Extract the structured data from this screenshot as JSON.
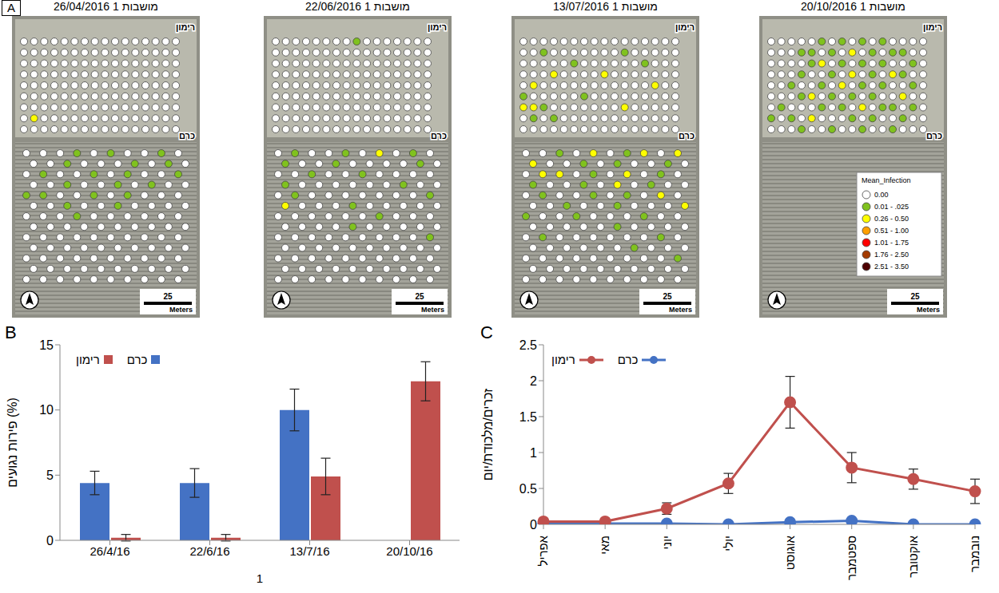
{
  "maps": {
    "panel_label": "A",
    "scale_bar": {
      "value": 25,
      "unit": "Meters"
    },
    "legend": {
      "title": "Mean_Infection",
      "classes": [
        {
          "label": "0.00",
          "color": "#ffffff"
        },
        {
          "label": "0.01 - .025",
          "color": "#80c21e"
        },
        {
          "label": "0.26 - 0.50",
          "color": "#ffff00"
        },
        {
          "label": "0.51 - 1.00",
          "color": "#ff9f00"
        },
        {
          "label": "1.01 - 1.75",
          "color": "#ff0000"
        },
        {
          "label": "1.76 - 2.50",
          "color": "#a33a00"
        },
        {
          "label": "2.51 - 3.50",
          "color": "#4d0000"
        }
      ]
    },
    "items": [
      {
        "title": "מושבות 1 26/04/2016",
        "blocks": [
          {
            "name": "רימון",
            "rows": 9,
            "cols": 16,
            "infected": [
              [
                7,
                1,
                2
              ]
            ]
          },
          {
            "name": "כרם",
            "rows": 13,
            "cols": 10,
            "infected": [
              [
                0,
                3,
                1
              ],
              [
                0,
                5,
                1
              ],
              [
                0,
                8,
                1
              ],
              [
                1,
                2,
                1
              ],
              [
                1,
                6,
                1
              ],
              [
                1,
                8,
                1
              ],
              [
                2,
                1,
                1
              ],
              [
                2,
                4,
                1
              ],
              [
                2,
                6,
                1
              ],
              [
                2,
                9,
                1
              ],
              [
                3,
                2,
                1
              ],
              [
                3,
                5,
                1
              ],
              [
                3,
                7,
                1
              ],
              [
                4,
                0,
                1
              ],
              [
                4,
                1,
                1
              ],
              [
                4,
                4,
                1
              ],
              [
                4,
                6,
                1
              ],
              [
                5,
                2,
                1
              ],
              [
                5,
                5,
                1
              ],
              [
                6,
                3,
                1
              ]
            ]
          }
        ]
      },
      {
        "title": "מושבות 1 22/06/2016",
        "blocks": [
          {
            "name": "רימון",
            "rows": 9,
            "cols": 16,
            "infected": [
              [
                0,
                8,
                1
              ]
            ]
          },
          {
            "name": "כרם",
            "rows": 13,
            "cols": 10,
            "infected": [
              [
                0,
                1,
                1
              ],
              [
                0,
                4,
                1
              ],
              [
                0,
                6,
                2
              ],
              [
                0,
                8,
                1
              ],
              [
                1,
                0,
                1
              ],
              [
                1,
                3,
                1
              ],
              [
                1,
                8,
                1
              ],
              [
                2,
                2,
                1
              ],
              [
                2,
                5,
                1
              ],
              [
                3,
                0,
                1
              ],
              [
                3,
                7,
                1
              ],
              [
                4,
                1,
                1
              ],
              [
                4,
                9,
                1
              ],
              [
                5,
                0,
                2
              ],
              [
                5,
                4,
                1
              ],
              [
                6,
                6,
                1
              ],
              [
                7,
                4,
                1
              ],
              [
                8,
                9,
                1
              ]
            ]
          }
        ]
      },
      {
        "title": "מושבות 1 13/07/2016",
        "blocks": [
          {
            "name": "רימון",
            "rows": 9,
            "cols": 16,
            "infected": [
              [
                1,
                2,
                1
              ],
              [
                1,
                10,
                1
              ],
              [
                2,
                5,
                1
              ],
              [
                2,
                12,
                1
              ],
              [
                3,
                3,
                2
              ],
              [
                3,
                8,
                2
              ],
              [
                4,
                1,
                2
              ],
              [
                4,
                13,
                2
              ],
              [
                5,
                0,
                1
              ],
              [
                5,
                6,
                1
              ],
              [
                6,
                0,
                2
              ],
              [
                6,
                1,
                2
              ],
              [
                6,
                2,
                1
              ],
              [
                6,
                10,
                2
              ],
              [
                7,
                1,
                1
              ],
              [
                7,
                3,
                1
              ]
            ]
          },
          {
            "name": "כרם",
            "rows": 13,
            "cols": 10,
            "infected": [
              [
                0,
                2,
                1
              ],
              [
                0,
                4,
                2
              ],
              [
                0,
                6,
                1
              ],
              [
                0,
                7,
                2
              ],
              [
                0,
                9,
                2
              ],
              [
                1,
                0,
                2
              ],
              [
                1,
                3,
                1
              ],
              [
                1,
                5,
                1
              ],
              [
                1,
                8,
                1
              ],
              [
                2,
                1,
                2
              ],
              [
                2,
                2,
                2
              ],
              [
                2,
                4,
                1
              ],
              [
                2,
                6,
                2
              ],
              [
                2,
                8,
                1
              ],
              [
                3,
                0,
                1
              ],
              [
                3,
                3,
                1
              ],
              [
                3,
                5,
                2
              ],
              [
                3,
                7,
                1
              ],
              [
                4,
                1,
                1
              ],
              [
                4,
                4,
                1
              ],
              [
                4,
                6,
                1
              ],
              [
                4,
                8,
                2
              ],
              [
                5,
                2,
                1
              ],
              [
                5,
                5,
                1
              ],
              [
                5,
                9,
                2
              ],
              [
                6,
                0,
                1
              ],
              [
                6,
                3,
                1
              ],
              [
                6,
                7,
                1
              ],
              [
                7,
                5,
                1
              ],
              [
                8,
                1,
                1
              ],
              [
                8,
                8,
                1
              ],
              [
                9,
                6,
                1
              ],
              [
                10,
                9,
                1
              ]
            ]
          }
        ]
      },
      {
        "title": "מושבות 1 20/10/2016",
        "blocks": [
          {
            "name": "רימון",
            "rows": 9,
            "cols": 16,
            "infected": [
              [
                0,
                5,
                1
              ],
              [
                0,
                7,
                1
              ],
              [
                0,
                9,
                1
              ],
              [
                0,
                11,
                1
              ],
              [
                1,
                3,
                1
              ],
              [
                1,
                4,
                1
              ],
              [
                1,
                6,
                1
              ],
              [
                1,
                8,
                2
              ],
              [
                1,
                10,
                1
              ],
              [
                1,
                12,
                1
              ],
              [
                1,
                13,
                1
              ],
              [
                2,
                4,
                1
              ],
              [
                2,
                5,
                2
              ],
              [
                2,
                7,
                1
              ],
              [
                2,
                9,
                1
              ],
              [
                2,
                11,
                1
              ],
              [
                2,
                14,
                1
              ],
              [
                3,
                3,
                1
              ],
              [
                3,
                6,
                1
              ],
              [
                3,
                8,
                2
              ],
              [
                3,
                10,
                1
              ],
              [
                3,
                12,
                2
              ],
              [
                3,
                13,
                1
              ],
              [
                4,
                2,
                1
              ],
              [
                4,
                5,
                1
              ],
              [
                4,
                7,
                2
              ],
              [
                4,
                9,
                1
              ],
              [
                4,
                11,
                1
              ],
              [
                4,
                14,
                1
              ],
              [
                5,
                3,
                1
              ],
              [
                5,
                4,
                2
              ],
              [
                5,
                6,
                1
              ],
              [
                5,
                8,
                1
              ],
              [
                5,
                10,
                1
              ],
              [
                5,
                13,
                2
              ],
              [
                6,
                1,
                1
              ],
              [
                6,
                5,
                1
              ],
              [
                6,
                7,
                1
              ],
              [
                6,
                9,
                2
              ],
              [
                6,
                11,
                1
              ],
              [
                6,
                12,
                1
              ],
              [
                6,
                14,
                1
              ],
              [
                7,
                0,
                1
              ],
              [
                7,
                2,
                1
              ],
              [
                7,
                4,
                2
              ],
              [
                7,
                8,
                1
              ],
              [
                7,
                10,
                1
              ],
              [
                7,
                13,
                1
              ],
              [
                8,
                3,
                1
              ],
              [
                8,
                6,
                1
              ],
              [
                8,
                9,
                1
              ],
              [
                8,
                12,
                1
              ]
            ]
          },
          {
            "name": "כרם",
            "rows": 0,
            "cols": 0,
            "infected": []
          }
        ]
      }
    ]
  },
  "chart_data": [
    {
      "type": "bar",
      "panel_label": "B",
      "categories": [
        "26/4/16",
        "22/6/16",
        "13/7/16",
        "20/10/16"
      ],
      "x_label": "1",
      "y_label": "פירות נגועים (%)",
      "ylim": [
        0,
        15
      ],
      "yticks": [
        0,
        5,
        10,
        15
      ],
      "grid": false,
      "legend": "upper left",
      "series": [
        {
          "name": "כרם",
          "color": "#4472c4",
          "values": [
            4.4,
            4.4,
            10.0,
            null
          ],
          "errors": [
            0.9,
            1.1,
            1.6,
            null
          ]
        },
        {
          "name": "רימון",
          "color": "#c0504d",
          "values": [
            0.2,
            0.2,
            4.9,
            12.2
          ],
          "errors": [
            0.25,
            0.25,
            1.4,
            1.5
          ]
        }
      ]
    },
    {
      "type": "line",
      "panel_label": "C",
      "categories": [
        "אפריל",
        "מאי",
        "יוני",
        "יולי",
        "אוגוסט",
        "ספטמבר",
        "אוקטובר",
        "נובמבר"
      ],
      "y_label": "זכרים/מלכודת/יום",
      "ylim": [
        0,
        2.5
      ],
      "yticks": [
        0,
        0.5,
        1,
        1.5,
        2,
        2.5
      ],
      "grid": false,
      "legend": "upper left",
      "series": [
        {
          "name": "כרם",
          "color": "#4472c4",
          "marker": "circle",
          "values": [
            0.01,
            0.01,
            0.01,
            0,
            0.03,
            0.05,
            0,
            0
          ]
        },
        {
          "name": "רימון",
          "color": "#c0504d",
          "marker": "circle",
          "values": [
            0.04,
            0.04,
            0.22,
            0.57,
            1.7,
            0.79,
            0.63,
            0.46
          ],
          "errors": [
            0.02,
            0.02,
            0.08,
            0.14,
            0.36,
            0.21,
            0.14,
            0.17
          ]
        }
      ]
    }
  ]
}
